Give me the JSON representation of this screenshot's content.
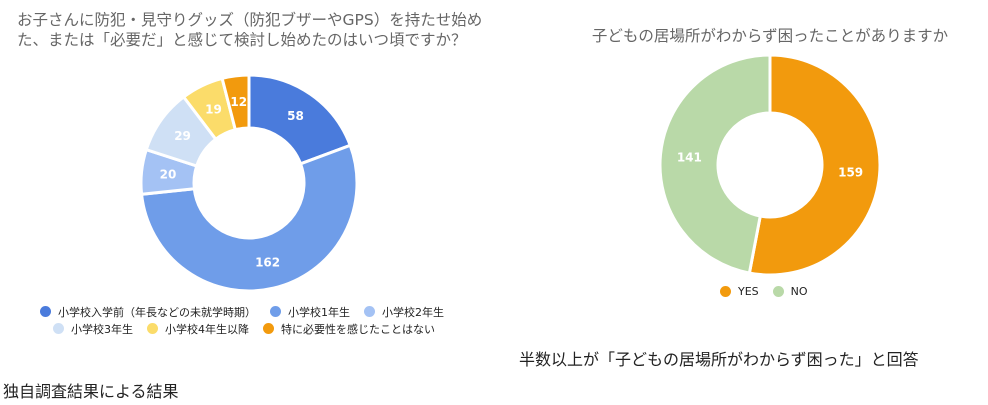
{
  "chart_data": [
    {
      "type": "pie",
      "variant": "donut",
      "title": "お子さんに防犯・見守りグッズ（防犯ブザーやGPS）を持たせ始めた、または「必要だ」と感じて検討し始めたのはいつ頃ですか？",
      "legend_position": "bottom",
      "slices": [
        {
          "label": "小学校入学前（年長などの未就学時期）",
          "value": 58,
          "color": "#4a7bdc"
        },
        {
          "label": "小学校1年生",
          "value": 162,
          "color": "#6f9de9"
        },
        {
          "label": "小学校2年生",
          "value": 20,
          "color": "#a4c2f4"
        },
        {
          "label": "小学校3年生",
          "value": 29,
          "color": "#cfe0f5"
        },
        {
          "label": "小学校4年生以降",
          "value": 19,
          "color": "#fbdc6a"
        },
        {
          "label": "特に必要性を感じたことはない",
          "value": 12,
          "color": "#f29a0d"
        }
      ]
    },
    {
      "type": "pie",
      "variant": "donut",
      "title": "子どもの居場所がわからず困ったことがありますか",
      "legend_position": "bottom",
      "slices": [
        {
          "label": "YES",
          "value": 159,
          "color": "#f29a0d"
        },
        {
          "label": "NO",
          "value": 141,
          "color": "#b9d9a8"
        }
      ]
    }
  ],
  "captions": {
    "right": "半数以上が「子どもの居場所がわからず困った」と回答",
    "source": "独自調査結果による結果"
  }
}
